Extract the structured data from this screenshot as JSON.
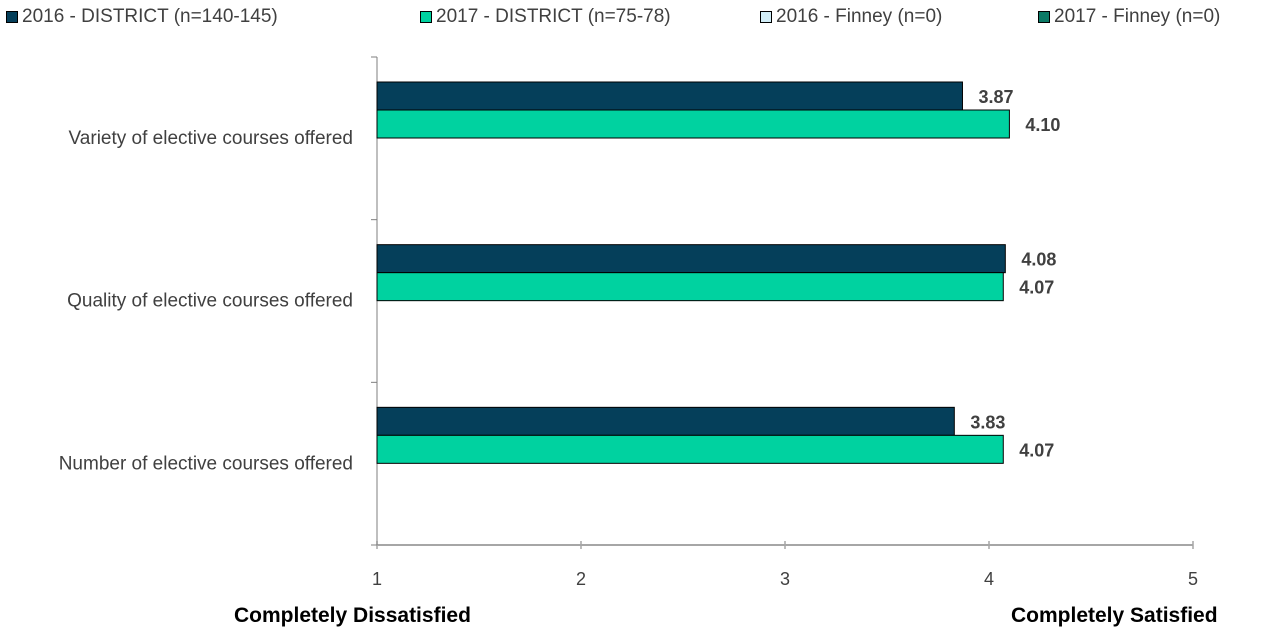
{
  "chart_data": {
    "type": "bar",
    "orientation": "horizontal",
    "categories": [
      "Variety of elective courses offered",
      "Quality of elective courses offered",
      "Number of elective courses offered"
    ],
    "series": [
      {
        "name": "2016 - DISTRICT (n=140-145)",
        "values": [
          3.87,
          4.08,
          3.83
        ],
        "labels": [
          "3.87",
          "4.08",
          "3.83"
        ],
        "color": "#053F5A"
      },
      {
        "name": "2017 - DISTRICT (n=75-78)",
        "values": [
          4.1,
          4.07,
          4.07
        ],
        "labels": [
          "4.10",
          "4.07",
          "4.07"
        ],
        "color": "#00D2A0"
      },
      {
        "name": "2016 - Finney (n=0)",
        "values": [
          null,
          null,
          null
        ],
        "labels": [
          "",
          "",
          ""
        ],
        "color": "#D2EEF8"
      },
      {
        "name": "2017 - Finney (n=0)",
        "values": [
          null,
          null,
          null
        ],
        "labels": [
          "",
          "",
          ""
        ],
        "color": "#0B7A66"
      }
    ],
    "xlim": [
      1,
      5
    ],
    "xticks": [
      "1",
      "2",
      "3",
      "4",
      "5"
    ],
    "scale_low_label": "Completely Dissatisfied",
    "scale_high_label": "Completely Satisfied",
    "legend_position": "top",
    "grid": false
  }
}
